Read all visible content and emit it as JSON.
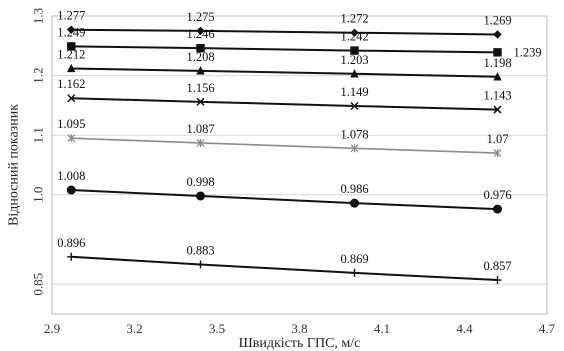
{
  "chart_data": {
    "type": "line",
    "xlabel": "Швидкість ГПС, м/с",
    "ylabel": "Відносний показник",
    "xlim": [
      2.9,
      4.7
    ],
    "ylim": [
      0.8,
      1.3
    ],
    "x_ticks": [
      "2.9",
      "3.2",
      "3.5",
      "3.8",
      "4.1",
      "4.4",
      "4.7"
    ],
    "y_ticks": [
      {
        "value": 0.85,
        "label": "0.85"
      },
      {
        "value": 1.0,
        "label": "1.0"
      },
      {
        "value": 1.1,
        "label": "1.1"
      },
      {
        "value": 1.2,
        "label": "1.2"
      },
      {
        "value": 1.3,
        "label": "1.3"
      }
    ],
    "grid": "horizontal",
    "x": [
      2.97,
      3.44,
      4.0,
      4.52
    ],
    "series": [
      {
        "marker": "diamond",
        "color": "#111111",
        "values": [
          1.277,
          1.275,
          1.272,
          1.269
        ],
        "labels": [
          "1.277",
          "1.275",
          "1.272",
          "1.269"
        ]
      },
      {
        "marker": "square",
        "color": "#111111",
        "values": [
          1.249,
          1.246,
          1.242,
          1.239
        ],
        "labels": [
          "1.249",
          "1.246",
          "1.242",
          "1.239"
        ]
      },
      {
        "marker": "triangle",
        "color": "#111111",
        "values": [
          1.212,
          1.208,
          1.203,
          1.198
        ],
        "labels": [
          "1.212",
          "1.208",
          "1.203",
          "1.198"
        ]
      },
      {
        "marker": "x",
        "color": "#111111",
        "values": [
          1.162,
          1.156,
          1.149,
          1.143
        ],
        "labels": [
          "1.162",
          "1.156",
          "1.149",
          "1.143"
        ]
      },
      {
        "marker": "star",
        "color": "#8c8c8c",
        "values": [
          1.095,
          1.087,
          1.078,
          1.07
        ],
        "labels": [
          "1.095",
          "1.087",
          "1.078",
          "1.07"
        ]
      },
      {
        "marker": "circle",
        "color": "#111111",
        "values": [
          1.008,
          0.998,
          0.986,
          0.976
        ],
        "labels": [
          "1.008",
          "0.998",
          "0.986",
          "0.976"
        ]
      },
      {
        "marker": "plus",
        "color": "#111111",
        "values": [
          0.896,
          0.883,
          0.869,
          0.857
        ],
        "labels": [
          "0.896",
          "0.883",
          "0.869",
          "0.857"
        ]
      }
    ]
  }
}
